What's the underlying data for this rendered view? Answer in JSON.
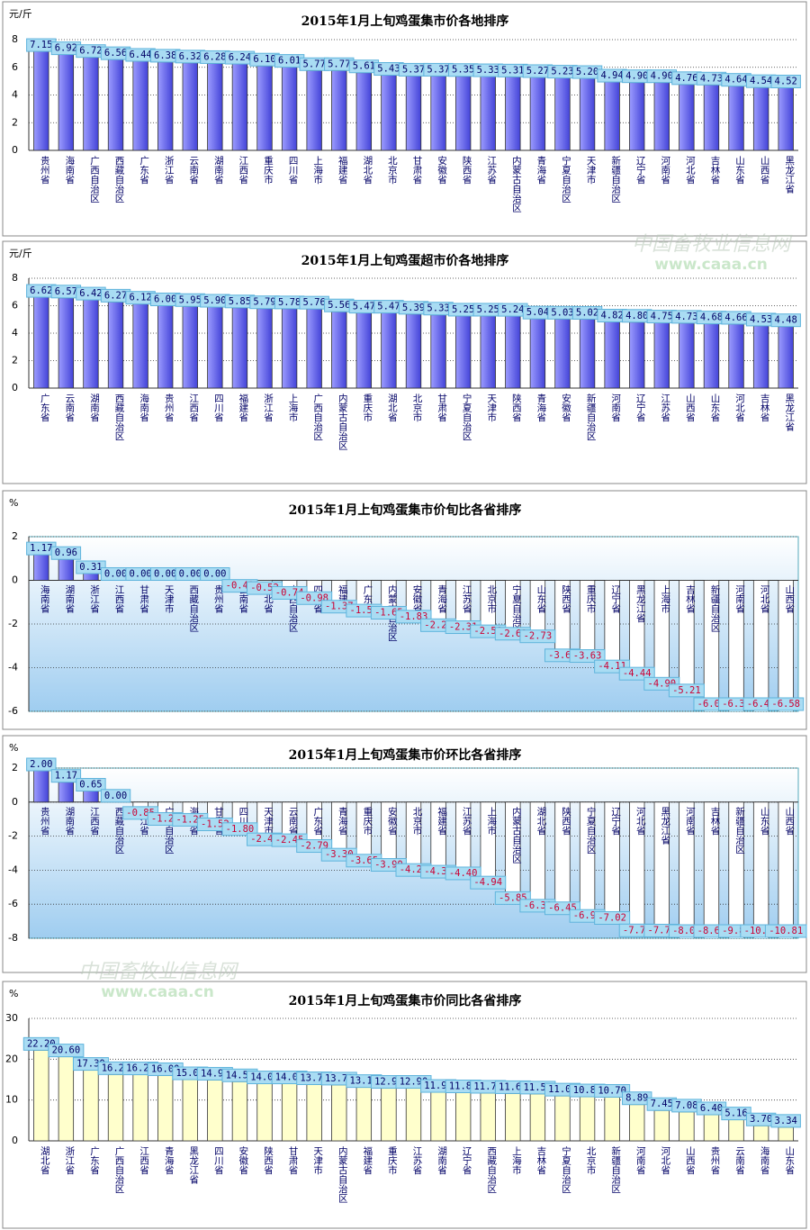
{
  "chart_data": [
    {
      "type": "bar",
      "title": "2015年1月上旬鸡蛋集市价各地排序",
      "y_label": "元/斤",
      "categories": [
        "贵州省",
        "海南省",
        "广西自治区",
        "西藏自治区",
        "广东省",
        "浙江省",
        "云南省",
        "湖南省",
        "江西省",
        "重庆市",
        "四川省",
        "上海市",
        "福建省",
        "湖北省",
        "北京市",
        "甘肃省",
        "安徽省",
        "陕西省",
        "江苏省",
        "内蒙古自治区",
        "青海省",
        "宁夏自治区",
        "天津市",
        "新疆自治区",
        "辽宁省",
        "河南省",
        "河北省",
        "吉林省",
        "山东省",
        "山西省",
        "黑龙江省"
      ],
      "values": [
        7.15,
        6.92,
        6.72,
        6.56,
        6.44,
        6.38,
        6.32,
        6.28,
        6.24,
        6.1,
        6.01,
        5.77,
        5.77,
        5.61,
        5.43,
        5.37,
        5.37,
        5.35,
        5.33,
        5.31,
        5.27,
        5.23,
        5.2,
        4.94,
        4.9,
        4.9,
        4.76,
        4.73,
        4.64,
        4.54,
        4.52
      ],
      "value_labels": [
        "7.15",
        "6.92",
        "6.72",
        "6.56",
        "6.44",
        "6.38",
        "6.32",
        "6.28",
        "6.24",
        "6.10",
        "6.01",
        "5.77",
        "5.77",
        "5.61",
        "5.43",
        "5.37",
        "5.37",
        "5.35",
        "5.33",
        "5.31",
        "5.27",
        "5.23",
        "5.20",
        "4.94",
        "4.90",
        "4.90",
        "4.76",
        "4.73",
        "4.64",
        "4.54",
        "4.52"
      ],
      "color": "#6b6bf5",
      "ylim": [
        0,
        8
      ],
      "yticks": [
        0,
        2,
        4,
        6,
        8
      ],
      "grid": true
    },
    {
      "type": "bar",
      "title": "2015年1月上旬鸡蛋超市价各地排序",
      "y_label": "元/斤",
      "categories": [
        "广东省",
        "云南省",
        "湖南省",
        "西藏自治区",
        "海南省",
        "贵州省",
        "江西省",
        "四川省",
        "福建省",
        "浙江省",
        "上海市",
        "广西自治区",
        "内蒙古自治区",
        "重庆市",
        "湖北省",
        "北京市",
        "甘肃省",
        "宁夏自治区",
        "天津市",
        "陕西省",
        "青海省",
        "安徽省",
        "新疆自治区",
        "河南省",
        "辽宁省",
        "江苏省",
        "山西省",
        "山东省",
        "河北省",
        "吉林省",
        "黑龙江省"
      ],
      "values": [
        6.62,
        6.57,
        6.42,
        6.27,
        6.12,
        6.0,
        5.95,
        5.9,
        5.85,
        5.79,
        5.78,
        5.76,
        5.56,
        5.47,
        5.47,
        5.39,
        5.33,
        5.25,
        5.25,
        5.24,
        5.04,
        5.03,
        5.02,
        4.82,
        4.8,
        4.75,
        4.73,
        4.68,
        4.66,
        4.53,
        4.48
      ],
      "value_labels": [
        "6.62",
        "6.57",
        "6.42",
        "6.27",
        "6.12",
        "6.00",
        "5.95",
        "5.90",
        "5.85",
        "5.79",
        "5.78",
        "5.76",
        "5.56",
        "5.47",
        "5.47",
        "5.39",
        "5.33",
        "5.25",
        "5.25",
        "5.24",
        "5.04",
        "5.03",
        "5.02",
        "4.82",
        "4.80",
        "4.75",
        "4.73",
        "4.68",
        "4.66",
        "4.53",
        "4.48"
      ],
      "color": "#6b6bf5",
      "ylim": [
        0,
        8
      ],
      "yticks": [
        0,
        2,
        4,
        6,
        8
      ],
      "grid": true
    },
    {
      "type": "bar",
      "title": "2015年1月上旬鸡蛋集市价旬比各省排序",
      "y_label": "%",
      "categories": [
        "海南省",
        "湖南省",
        "浙江省",
        "江西省",
        "甘肃省",
        "天津市",
        "西藏自治区",
        "贵州省",
        "云南省",
        "湖北省",
        "广西自治区",
        "四川省",
        "福建省",
        "广东省",
        "内蒙古自治区",
        "安徽省",
        "青海省",
        "江苏省",
        "北京市",
        "宁夏自治区",
        "山东省",
        "陕西省",
        "重庆市",
        "辽宁省",
        "黑龙江省",
        "上海市",
        "吉林省",
        "新疆自治区",
        "河南省",
        "河北省",
        "山西省"
      ],
      "values": [
        1.17,
        0.96,
        0.31,
        0,
        0,
        0,
        0,
        0,
        -0.42,
        -0.52,
        -0.74,
        -0.98,
        -1.37,
        -1.55,
        -1.65,
        -1.83,
        -2.22,
        -2.31,
        -2.5,
        -2.61,
        -2.73,
        -3.6,
        -3.63,
        -4.11,
        -4.44,
        -4.9,
        -5.21,
        -6.05,
        -6.31,
        -6.4,
        -6.58
      ],
      "value_labels": [
        "1.17",
        "0.96",
        "0.31",
        "0.00",
        "0.00",
        "0.00",
        "0.00",
        "0.00",
        "-0.42",
        "-0.52",
        "-0.74",
        "-0.98",
        "-1.37",
        "-1.55",
        "-1.65",
        "-1.83",
        "-2.22",
        "-2.31",
        "-2.50",
        "-2.61",
        "-2.73",
        "-3.60",
        "-3.63",
        "-4.11",
        "-4.44",
        "-4.90",
        "-5.21",
        "-6.05",
        "-6.31",
        "-6.40",
        "-6.58"
      ],
      "color": "#6b6bf5",
      "negative_color": "#ffffff",
      "ylim": [
        -6,
        2
      ],
      "yticks": [
        -6,
        -4,
        -2,
        0,
        2
      ],
      "grid": true
    },
    {
      "type": "bar",
      "title": "2015年1月上旬鸡蛋集市价环比各省排序",
      "y_label": "%",
      "categories": [
        "贵州省",
        "湖南省",
        "江西省",
        "西藏自治区",
        "浙江省",
        "广西自治区",
        "海南省",
        "甘肃省",
        "四川省",
        "天津市",
        "云南省",
        "广东省",
        "青海省",
        "重庆市",
        "安徽省",
        "北京市",
        "福建省",
        "江苏省",
        "上海市",
        "内蒙古自治区",
        "湖北省",
        "陕西省",
        "宁夏自治区",
        "辽宁省",
        "河北省",
        "黑龙江省",
        "河南省",
        "吉林省",
        "新疆自治区",
        "山东省",
        "山西省"
      ],
      "values": [
        2.0,
        1.17,
        0.65,
        0,
        -0.85,
        -1.2,
        -1.25,
        -1.52,
        -1.8,
        -2.4,
        -2.45,
        -2.79,
        -3.3,
        -3.65,
        -3.9,
        -4.2,
        -4.3,
        -4.4,
        -4.94,
        -5.85,
        -6.3,
        -6.45,
        -6.9,
        -7.02,
        -7.75,
        -7.76,
        -8.07,
        -8.69,
        -9.85,
        -10.25,
        -10.81
      ],
      "value_labels": [
        "2.00",
        "1.17",
        "0.65",
        "0.00",
        "-0.85",
        "-1.20",
        "-1.25",
        "-1.52",
        "-1.80",
        "-2.40",
        "-2.45",
        "-2.79",
        "-3.30",
        "-3.65",
        "-3.90",
        "-4.20",
        "-4.30",
        "-4.40",
        "-4.94",
        "-5.85",
        "-6.30",
        "-6.45",
        "-6.90",
        "-7.02",
        "-7.75",
        "-7.76",
        "-8.07",
        "-8.69",
        "-9.85",
        "-10.25",
        "-10.81"
      ],
      "color": "#6b6bf5",
      "negative_color": "#ffffff",
      "ylim": [
        -8,
        2
      ],
      "yticks": [
        -8,
        -6,
        -4,
        -2,
        0,
        2
      ],
      "grid": true
    },
    {
      "type": "bar",
      "title": "2015年1月上旬鸡蛋集市价同比各省排序",
      "y_label": "%",
      "categories": [
        "湖北省",
        "浙江省",
        "广东省",
        "广西自治区",
        "江西省",
        "青海省",
        "黑龙江省",
        "四川省",
        "安徽省",
        "陕西省",
        "甘肃省",
        "天津市",
        "内蒙古自治区",
        "福建省",
        "重庆市",
        "江苏省",
        "湖南省",
        "辽宁省",
        "西藏自治区",
        "上海市",
        "吉林省",
        "宁夏自治区",
        "北京市",
        "新疆自治区",
        "河南省",
        "河北省",
        "山西省",
        "贵州省",
        "云南省",
        "海南省",
        "山东省"
      ],
      "values": [
        22.2,
        20.6,
        17.3,
        16.25,
        16.2,
        16.0,
        15.0,
        14.9,
        14.5,
        14.0,
        14.0,
        13.79,
        13.7,
        13.1,
        12.9,
        12.9,
        11.9,
        11.8,
        11.7,
        11.6,
        11.5,
        11.0,
        10.8,
        10.7,
        8.89,
        7.45,
        7.08,
        6.4,
        5.16,
        3.7,
        3.34
      ],
      "value_labels": [
        "22.20",
        "20.60",
        "17.30",
        "16.25",
        "16.20",
        "16.00",
        "15.00",
        "14.90",
        "14.50",
        "14.00",
        "14.00",
        "13.79",
        "13.70",
        "13.10",
        "12.90",
        "12.90",
        "11.90",
        "11.80",
        "11.70",
        "11.60",
        "11.50",
        "11.00",
        "10.80",
        "10.70",
        "8.89",
        "7.45",
        "7.08",
        "6.40",
        "5.16",
        "3.70",
        "3.34"
      ],
      "color": "#ffffcc",
      "ylim": [
        0,
        30
      ],
      "yticks": [
        0,
        10,
        20,
        30
      ],
      "grid": true
    }
  ],
  "watermark": {
    "text": "中国畜牧业信息网",
    "url": "www.caaa.cn"
  }
}
